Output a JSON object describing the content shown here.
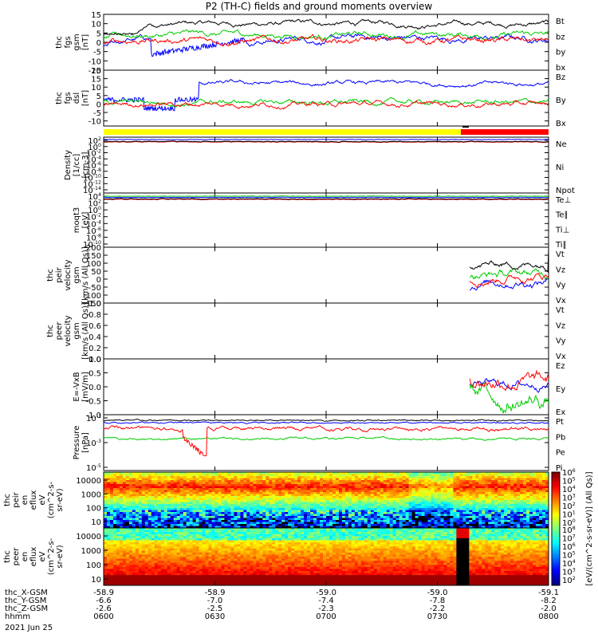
{
  "title": "P2 (TH-C) fields and ground moments overview",
  "date_label": "2021 Jun 25",
  "xaxis": {
    "times": [
      "0600",
      "0630",
      "0700",
      "0730",
      "0800"
    ],
    "rows": [
      {
        "label": "thc_X-GSM",
        "values": [
          "-58.9",
          "-58.9",
          "-59.0",
          "-59.0",
          "-59.1"
        ]
      },
      {
        "label": "thc_Y-GSM",
        "values": [
          "-6.6",
          "-7.0",
          "-7.4",
          "-7.8",
          "-8.2"
        ]
      },
      {
        "label": "thc_Z-GSM",
        "values": [
          "-2.6",
          "-2.5",
          "-2.3",
          "-2.2",
          "-2.0"
        ]
      },
      {
        "label": "hhmm",
        "values": [
          "0600",
          "0630",
          "0700",
          "0730",
          "0800"
        ]
      }
    ]
  },
  "colorbar": {
    "label": "[eV/(cm^2-s-sr-eV)] (All Qs)]",
    "ion_ticks": [
      "10^6",
      "10^5",
      "10^4",
      "10^3",
      "10^2",
      "10^1",
      "10^0"
    ],
    "ele_ticks": [
      "10^8",
      "10^7",
      "10^6",
      "10^5",
      "10^4",
      "10^3",
      "10^2"
    ]
  },
  "chart_data": [
    {
      "type": "line",
      "id": "fgs_gsm",
      "ylabel": [
        "thc",
        "fgs",
        "gsm",
        "[nT]"
      ],
      "yticks": [
        15,
        10,
        5,
        0,
        -5,
        -10,
        -15
      ],
      "ylim": [
        -15,
        15
      ],
      "series": [
        {
          "name": "Bt",
          "color": "#000000"
        },
        {
          "name": "bz",
          "color": "#ff0000"
        },
        {
          "name": "by",
          "color": "#00cc00"
        },
        {
          "name": "bx",
          "color": "#0000ff"
        }
      ]
    },
    {
      "type": "line",
      "id": "fgs_dsl",
      "ylabel": [
        "thc",
        "fgs",
        "dsl",
        "[nT]"
      ],
      "yticks": [
        20,
        15,
        10,
        5,
        0,
        -5,
        -10
      ],
      "ylim": [
        -13,
        20
      ],
      "series": [
        {
          "name": "Bz",
          "color": "#ff0000"
        },
        {
          "name": "By",
          "color": "#00cc00"
        },
        {
          "name": "Bx",
          "color": "#0000ff"
        }
      ]
    },
    {
      "type": "line",
      "id": "density",
      "ylabel": [
        "Density",
        "[1/cc]",
        "[cm-3]"
      ],
      "yticks": [
        "10^2",
        "10^0",
        "10^-2",
        "10^-4",
        "10^-6",
        "10^-8",
        "10^-10",
        "10^-12",
        "10^-14"
      ],
      "series": [
        {
          "name": "Ne",
          "color": "#ff0000"
        },
        {
          "name": "Ni",
          "color": "#000000"
        },
        {
          "name": "Npot",
          "color": "#0000ff"
        }
      ]
    },
    {
      "type": "line",
      "id": "temperature",
      "ylabel": [
        "moqt3",
        "[eV]"
      ],
      "yticks": [
        "10^4",
        "10^2",
        "10^0",
        "10^-2",
        "10^-4",
        "10^-6",
        "10^-8",
        "10^-10"
      ],
      "series": [
        {
          "name": "Te⊥",
          "color": "#ff0000"
        },
        {
          "name": "Te∥",
          "color": "#000000"
        },
        {
          "name": "Ti⊥",
          "color": "#00cc00"
        },
        {
          "name": "Ti∥",
          "color": "#00cc00"
        }
      ]
    },
    {
      "type": "line",
      "id": "peir_velocity",
      "ylabel": [
        "thc",
        "peir",
        "velocity",
        "gsm",
        "[km/s (All Qs)]"
      ],
      "yticks": [
        200,
        150,
        100,
        50,
        0,
        -50,
        -100,
        -150
      ],
      "ylim": [
        -150,
        200
      ],
      "series": [
        {
          "name": "Vt",
          "color": "#000000"
        },
        {
          "name": "Vz",
          "color": "#ff0000"
        },
        {
          "name": "Vy",
          "color": "#00cc00"
        },
        {
          "name": "Vx",
          "color": "#0000ff"
        }
      ]
    },
    {
      "type": "line",
      "id": "peer_velocity",
      "ylabel": [
        "thc",
        "peer",
        "velocity",
        "gsm",
        "[km/s (All Qs)]"
      ],
      "yticks": [
        1.0,
        0.8,
        0.6,
        0.4,
        0.2,
        0.0
      ],
      "ylim": [
        0,
        1
      ],
      "series": [
        {
          "name": "Vt",
          "color": "#000000"
        },
        {
          "name": "Vz",
          "color": "#ff0000"
        },
        {
          "name": "Vy",
          "color": "#00cc00"
        },
        {
          "name": "Vx",
          "color": "#0000ff"
        }
      ]
    },
    {
      "type": "line",
      "id": "efield",
      "ylabel": [
        "E=-VxB",
        "[mV/m]"
      ],
      "yticks": [
        1.0,
        0.5,
        0.0,
        -0.5,
        -1.0
      ],
      "ylim": [
        -1,
        1
      ],
      "series": [
        {
          "name": "Ez",
          "color": "#ff0000"
        },
        {
          "name": "Ey",
          "color": "#00cc00"
        },
        {
          "name": "Ex",
          "color": "#0000ff"
        }
      ]
    },
    {
      "type": "line",
      "id": "pressure",
      "ylabel": [
        "Pressure",
        "[nPa]"
      ],
      "yticks": [
        "10^-1",
        "10^-3",
        "10^-5"
      ],
      "series": [
        {
          "name": "Pt",
          "color": "#000000"
        },
        {
          "name": "Pb",
          "color": "#ff0000"
        },
        {
          "name": "Pe",
          "color": "#00cc00"
        },
        {
          "name": "Pi",
          "color": "#0000ff"
        }
      ]
    },
    {
      "type": "heatmap",
      "id": "peir_en_eflux",
      "ylabel": [
        "thc",
        "peir",
        "en",
        "eflux",
        "eV",
        "(cm^2-s-",
        "sr-eV)"
      ],
      "yticks": [
        10000,
        1000,
        100,
        10
      ]
    },
    {
      "type": "heatmap",
      "id": "peer_en_eflux",
      "ylabel": [
        "thc",
        "peer",
        "en",
        "eflux",
        "eV",
        "(cm^2-s-",
        "sr-eV)"
      ],
      "yticks": [
        10000,
        1000,
        100,
        10
      ]
    }
  ]
}
